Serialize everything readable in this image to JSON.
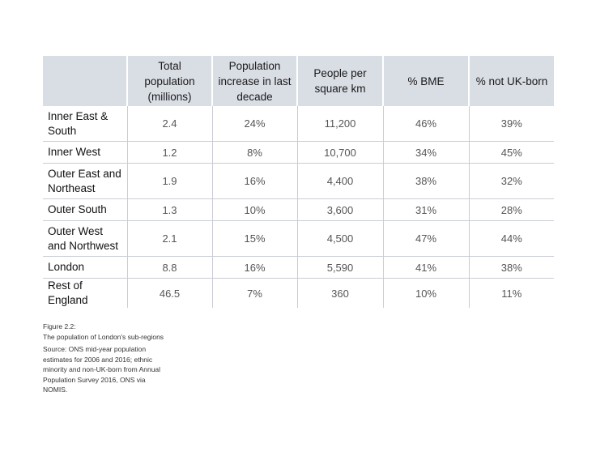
{
  "table": {
    "headers": [
      "",
      "Total population (millions)",
      "Population increase in last decade",
      "People per square km",
      "% BME",
      "% not UK-born"
    ],
    "rows": [
      [
        "Inner East & South",
        "2.4",
        "24%",
        "11,200",
        "46%",
        "39%"
      ],
      [
        "Inner West",
        "1.2",
        "8%",
        "10,700",
        "34%",
        "45%"
      ],
      [
        "Outer East and Northeast",
        "1.9",
        "16%",
        "4,400",
        "38%",
        "32%"
      ],
      [
        "Outer South",
        "1.3",
        "10%",
        "3,600",
        "31%",
        "28%"
      ],
      [
        "Outer West and Northwest",
        "2.1",
        "15%",
        "4,500",
        "47%",
        "44%"
      ],
      [
        "London",
        "8.8",
        "16%",
        "5,590",
        "41%",
        "38%"
      ],
      [
        "Rest of England",
        "46.5",
        "7%",
        "360",
        "10%",
        "11%"
      ]
    ]
  },
  "caption": {
    "figure_label": "Figure 2.2:",
    "figure_title": "The population of London's sub-regions",
    "source": "Source: ONS mid-year population estimates for 2006 and 2016; ethnic minority and non-UK-born from Annual Population Survey 2016, ONS via NOMIS."
  },
  "colors": {
    "header_background": "#d9dde4",
    "grid_line": "#c9cdd4",
    "value_text": "#555555"
  }
}
